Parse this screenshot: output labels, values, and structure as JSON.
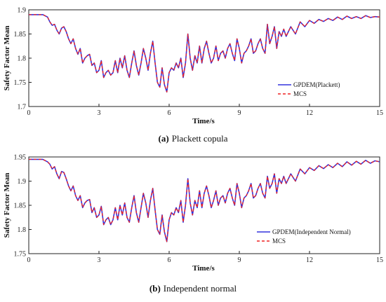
{
  "chart_data": [
    {
      "type": "line",
      "panel_label": "(a)",
      "caption": "Plackett copula",
      "xlabel": "Time/s",
      "ylabel": "Safety Factor Mean",
      "xlim": [
        0,
        15
      ],
      "ylim": [
        1.7,
        1.9
      ],
      "xticks": [
        "0",
        "3",
        "6",
        "9",
        "12",
        "15"
      ],
      "yticks": [
        "1.7",
        "1.75",
        "1.8",
        "1.85",
        "1.9"
      ],
      "legend": "bottom-right",
      "colors": {
        "primary": "#3333dd",
        "secondary": "#ee2222"
      },
      "series": [
        {
          "name": "GPDEM(Plackett)",
          "style": "solid",
          "color": "#3333dd"
        },
        {
          "name": "MCS",
          "style": "dashed",
          "color": "#ee2222"
        }
      ],
      "x": [
        0,
        0.3,
        0.6,
        0.8,
        0.9,
        1.0,
        1.1,
        1.2,
        1.3,
        1.4,
        1.5,
        1.6,
        1.7,
        1.8,
        1.9,
        2.0,
        2.1,
        2.2,
        2.3,
        2.4,
        2.5,
        2.6,
        2.7,
        2.8,
        2.9,
        3.0,
        3.1,
        3.2,
        3.3,
        3.4,
        3.5,
        3.6,
        3.7,
        3.8,
        3.9,
        4.0,
        4.1,
        4.2,
        4.3,
        4.4,
        4.5,
        4.6,
        4.7,
        4.8,
        4.9,
        5.0,
        5.1,
        5.2,
        5.3,
        5.4,
        5.5,
        5.6,
        5.7,
        5.8,
        5.9,
        6.0,
        6.1,
        6.2,
        6.3,
        6.4,
        6.5,
        6.6,
        6.7,
        6.8,
        6.9,
        7.0,
        7.1,
        7.2,
        7.3,
        7.4,
        7.5,
        7.6,
        7.7,
        7.8,
        7.9,
        8.0,
        8.1,
        8.2,
        8.3,
        8.4,
        8.5,
        8.6,
        8.7,
        8.8,
        8.9,
        9.0,
        9.1,
        9.2,
        9.3,
        9.4,
        9.5,
        9.6,
        9.7,
        9.8,
        9.9,
        10.0,
        10.1,
        10.2,
        10.3,
        10.4,
        10.5,
        10.6,
        10.7,
        10.8,
        10.9,
        11.0,
        11.2,
        11.4,
        11.6,
        11.8,
        12.0,
        12.2,
        12.4,
        12.6,
        12.8,
        13.0,
        13.2,
        13.4,
        13.6,
        13.8,
        14.0,
        14.2,
        14.4,
        14.6,
        14.8,
        15.0
      ],
      "y": [
        1.89,
        1.89,
        1.89,
        1.885,
        1.875,
        1.868,
        1.87,
        1.858,
        1.85,
        1.862,
        1.865,
        1.855,
        1.84,
        1.83,
        1.84,
        1.82,
        1.808,
        1.82,
        1.79,
        1.8,
        1.805,
        1.808,
        1.785,
        1.79,
        1.77,
        1.775,
        1.795,
        1.76,
        1.77,
        1.775,
        1.765,
        1.77,
        1.795,
        1.77,
        1.8,
        1.78,
        1.805,
        1.775,
        1.76,
        1.79,
        1.815,
        1.785,
        1.765,
        1.79,
        1.82,
        1.8,
        1.775,
        1.81,
        1.835,
        1.79,
        1.75,
        1.74,
        1.78,
        1.745,
        1.73,
        1.77,
        1.78,
        1.775,
        1.79,
        1.78,
        1.8,
        1.76,
        1.79,
        1.85,
        1.8,
        1.775,
        1.805,
        1.79,
        1.825,
        1.79,
        1.82,
        1.835,
        1.81,
        1.79,
        1.8,
        1.825,
        1.795,
        1.81,
        1.815,
        1.8,
        1.82,
        1.83,
        1.81,
        1.795,
        1.84,
        1.82,
        1.79,
        1.81,
        1.815,
        1.825,
        1.84,
        1.81,
        1.815,
        1.83,
        1.84,
        1.82,
        1.81,
        1.87,
        1.83,
        1.845,
        1.865,
        1.82,
        1.855,
        1.845,
        1.86,
        1.845,
        1.865,
        1.85,
        1.875,
        1.865,
        1.878,
        1.872,
        1.88,
        1.876,
        1.882,
        1.878,
        1.885,
        1.88,
        1.887,
        1.882,
        1.886,
        1.882,
        1.888,
        1.884,
        1.886,
        1.885
      ]
    },
    {
      "type": "line",
      "panel_label": "(b)",
      "caption": "Independent normal",
      "xlabel": "Time/s",
      "ylabel": "Safety Factor Mean",
      "xlim": [
        0,
        15
      ],
      "ylim": [
        1.75,
        1.95
      ],
      "xticks": [
        "0",
        "3",
        "6",
        "9",
        "12",
        "15"
      ],
      "yticks": [
        "1.75",
        "1.8",
        "1.85",
        "1.9",
        "1.95"
      ],
      "legend": "bottom-right",
      "colors": {
        "primary": "#3333dd",
        "secondary": "#ee2222"
      },
      "series": [
        {
          "name": "GPDEM(Independent Normal)",
          "style": "solid",
          "color": "#3333dd"
        },
        {
          "name": "MCS",
          "style": "dashed",
          "color": "#ee2222"
        }
      ],
      "x": [
        0,
        0.3,
        0.6,
        0.8,
        0.9,
        1.0,
        1.1,
        1.2,
        1.3,
        1.4,
        1.5,
        1.6,
        1.7,
        1.8,
        1.9,
        2.0,
        2.1,
        2.2,
        2.3,
        2.4,
        2.5,
        2.6,
        2.7,
        2.8,
        2.9,
        3.0,
        3.1,
        3.2,
        3.3,
        3.4,
        3.5,
        3.6,
        3.7,
        3.8,
        3.9,
        4.0,
        4.1,
        4.2,
        4.3,
        4.4,
        4.5,
        4.6,
        4.7,
        4.8,
        4.9,
        5.0,
        5.1,
        5.2,
        5.3,
        5.4,
        5.5,
        5.6,
        5.7,
        5.8,
        5.9,
        6.0,
        6.1,
        6.2,
        6.3,
        6.4,
        6.5,
        6.6,
        6.7,
        6.8,
        6.9,
        7.0,
        7.1,
        7.2,
        7.3,
        7.4,
        7.5,
        7.6,
        7.7,
        7.8,
        7.9,
        8.0,
        8.1,
        8.2,
        8.3,
        8.4,
        8.5,
        8.6,
        8.7,
        8.8,
        8.9,
        9.0,
        9.1,
        9.2,
        9.3,
        9.4,
        9.5,
        9.6,
        9.7,
        9.8,
        9.9,
        10.0,
        10.1,
        10.2,
        10.3,
        10.4,
        10.5,
        10.6,
        10.7,
        10.8,
        10.9,
        11.0,
        11.2,
        11.4,
        11.6,
        11.8,
        12.0,
        12.2,
        12.4,
        12.6,
        12.8,
        13.0,
        13.2,
        13.4,
        13.6,
        13.8,
        14.0,
        14.2,
        14.4,
        14.6,
        14.8,
        15.0
      ],
      "y": [
        1.945,
        1.945,
        1.945,
        1.94,
        1.935,
        1.925,
        1.93,
        1.915,
        1.905,
        1.92,
        1.918,
        1.905,
        1.89,
        1.88,
        1.89,
        1.87,
        1.86,
        1.87,
        1.845,
        1.855,
        1.86,
        1.862,
        1.835,
        1.845,
        1.825,
        1.83,
        1.848,
        1.81,
        1.82,
        1.825,
        1.81,
        1.82,
        1.845,
        1.82,
        1.85,
        1.83,
        1.855,
        1.825,
        1.815,
        1.845,
        1.87,
        1.835,
        1.815,
        1.845,
        1.875,
        1.855,
        1.825,
        1.86,
        1.885,
        1.84,
        1.8,
        1.79,
        1.83,
        1.795,
        1.775,
        1.82,
        1.835,
        1.83,
        1.845,
        1.835,
        1.86,
        1.815,
        1.85,
        1.905,
        1.855,
        1.83,
        1.86,
        1.845,
        1.88,
        1.845,
        1.875,
        1.89,
        1.87,
        1.845,
        1.86,
        1.88,
        1.85,
        1.865,
        1.87,
        1.855,
        1.875,
        1.885,
        1.865,
        1.85,
        1.895,
        1.875,
        1.845,
        1.865,
        1.87,
        1.88,
        1.895,
        1.865,
        1.87,
        1.885,
        1.895,
        1.875,
        1.865,
        1.91,
        1.885,
        1.895,
        1.915,
        1.875,
        1.905,
        1.895,
        1.91,
        1.895,
        1.915,
        1.9,
        1.925,
        1.915,
        1.928,
        1.922,
        1.932,
        1.926,
        1.934,
        1.928,
        1.937,
        1.93,
        1.94,
        1.933,
        1.941,
        1.935,
        1.943,
        1.937,
        1.942,
        1.94
      ]
    }
  ]
}
